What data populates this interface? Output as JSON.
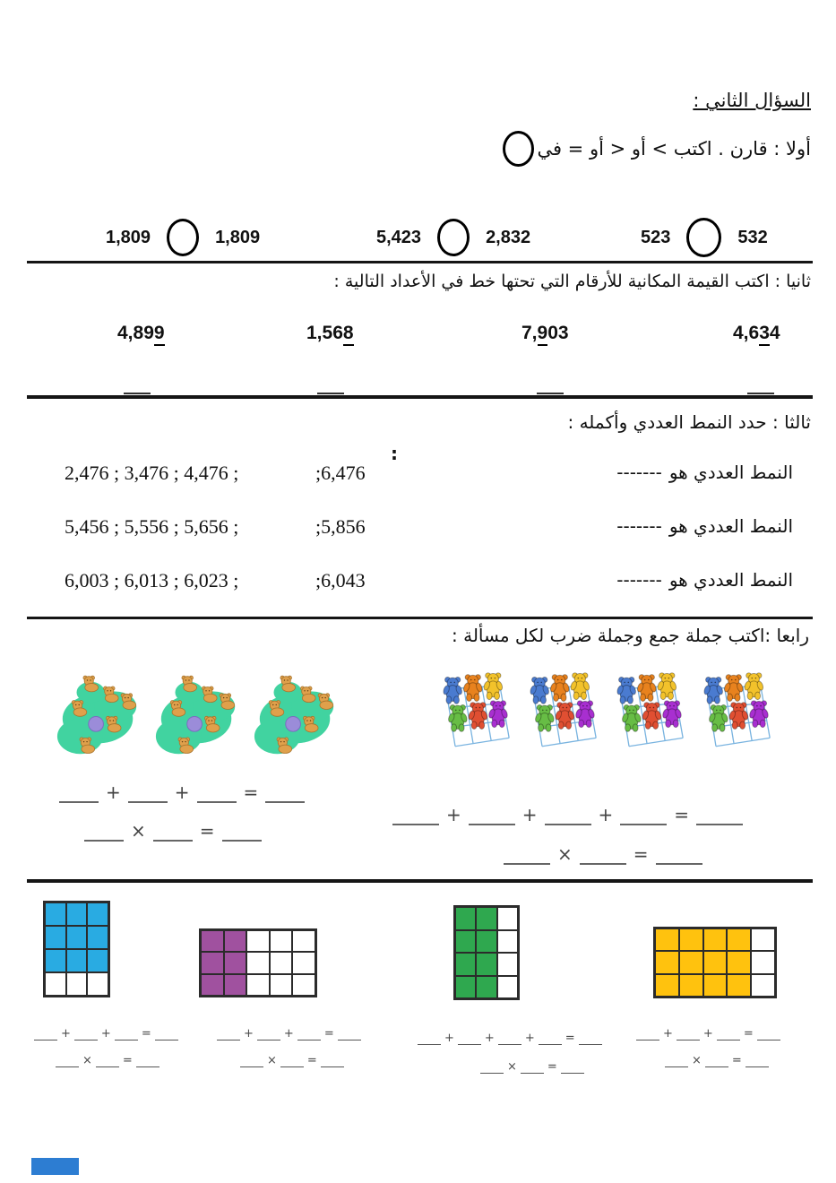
{
  "header": {
    "title": "السؤال الثاني :",
    "instruction_first": "أولا : قارن . اكتب > أو < أو = في"
  },
  "compare": {
    "pairs": [
      {
        "a": "1,809",
        "b": "1,809"
      },
      {
        "a": "5,423",
        "b": "2,832"
      },
      {
        "a": "523",
        "b": "532"
      }
    ]
  },
  "place_value": {
    "instruction": "ثانيا : اكتب القيمة المكانية للأرقام التي تحتها خط في الأعداد التالية :",
    "numbers": [
      {
        "pre": "4,89",
        "underlined": "9",
        "post": ""
      },
      {
        "pre": "1,56",
        "underlined": "8",
        "post": ""
      },
      {
        "pre": "7,",
        "underlined": "9",
        "post": "03"
      },
      {
        "pre": "4,6",
        "underlined": "3",
        "post": "4"
      }
    ]
  },
  "patterns": {
    "instruction": "ثالثا : حدد النمط العددي وأكمله :",
    "colon": ":",
    "answer_label": "النمط العددي هو",
    "answer_dashes": "-------",
    "rows": [
      {
        "seq": "2,476 ; 3,476 ; 4,476 ;",
        "next": ";6,476"
      },
      {
        "seq": "5,456 ; 5,556 ; 5,656 ;",
        "next": ";5,856"
      },
      {
        "seq": "6,003 ; 6,013 ; 6,023 ;",
        "next": ";6,043"
      }
    ]
  },
  "word_problems": {
    "instruction": "رابعا :اكتب جملة جمع وجملة ضرب لكل مسألة :",
    "cubs": {
      "groups": 3,
      "per_group": 6,
      "body_color": "#dfa04b",
      "patch_color": "#41d3a0",
      "ball_color": "#9b8cd9"
    },
    "bears": {
      "groups": 4,
      "per_group": 6,
      "grid_color": "#7ab4e0",
      "colors": [
        "#4a7bd0",
        "#e8821e",
        "#f2c22b",
        "#67bd45",
        "#e04f32",
        "#a82fd0"
      ]
    },
    "left_equations": {
      "add_terms": 3,
      "mul_terms": 2
    },
    "right_equations": {
      "add_terms": 4,
      "mul_terms": 2
    }
  },
  "symbols": {
    "plus": "+",
    "times": "×",
    "equals": "="
  },
  "array_grids": {
    "grids": [
      {
        "cols": 3,
        "rows": 4,
        "fill_mode": "top-rows",
        "fill_count": 3,
        "color": "#29abe2",
        "add_terms": 3,
        "mul_terms": 2
      },
      {
        "cols": 5,
        "rows": 3,
        "fill_mode": "left-cols",
        "fill_count": 2,
        "color": "#a0519f",
        "add_terms": 3,
        "mul_terms": 2
      },
      {
        "cols": 3,
        "rows": 4,
        "fill_mode": "left-cols",
        "fill_count": 2,
        "color": "#2fa84f",
        "add_terms": 4,
        "mul_terms": 2
      },
      {
        "cols": 5,
        "rows": 3,
        "fill_mode": "left-cols",
        "fill_count": 4,
        "color": "#ffc20e",
        "add_terms": 3,
        "mul_terms": 2
      }
    ]
  },
  "footer": {
    "bar_color": "#2d7dd2"
  }
}
